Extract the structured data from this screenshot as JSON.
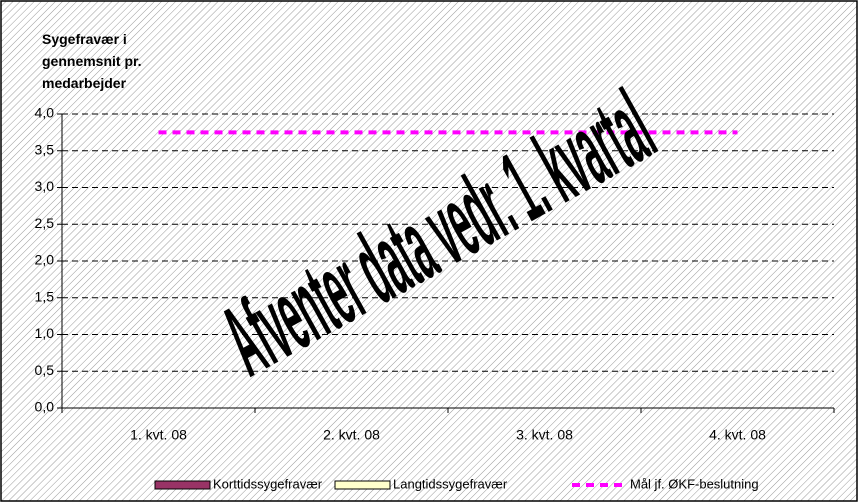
{
  "chart_data": {
    "type": "bar",
    "y_label": "Sygefravær i gennemsnit pr. medarbejder",
    "annotation": "Afventer data vedr. 1. kvartal",
    "categories": [
      "1. kvt. 08",
      "2. kvt. 08",
      "3. kvt. 08",
      "4. kvt. 08"
    ],
    "series": [
      {
        "name": "Korttidssygefravær",
        "type": "bar",
        "color": "#993366",
        "values": [
          null,
          null,
          null,
          null
        ]
      },
      {
        "name": "Langtidssygefravær",
        "type": "bar",
        "color": "#ffffcc",
        "values": [
          null,
          null,
          null,
          null
        ]
      },
      {
        "name": "Mål jf. ØKF-beslutning",
        "type": "line",
        "color": "#ff00ff",
        "dashed": true,
        "values": [
          3.75,
          3.75,
          3.75,
          3.75
        ]
      }
    ],
    "ylim": [
      0,
      4
    ],
    "yticks": [
      {
        "value": 0,
        "label": "0,0"
      },
      {
        "value": 0.5,
        "label": "0,5"
      },
      {
        "value": 1,
        "label": "1,0"
      },
      {
        "value": 1.5,
        "label": "1,5"
      },
      {
        "value": 2,
        "label": "2,0"
      },
      {
        "value": 2.5,
        "label": "2,5"
      },
      {
        "value": 3,
        "label": "3,0"
      },
      {
        "value": 3.5,
        "label": "3,5"
      },
      {
        "value": 4,
        "label": "4,0"
      }
    ],
    "grid": true,
    "legend": "bottom"
  }
}
